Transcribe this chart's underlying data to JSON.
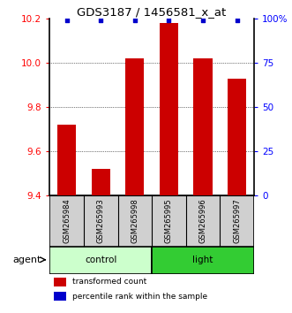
{
  "title": "GDS3187 / 1456581_x_at",
  "samples": [
    "GSM265984",
    "GSM265993",
    "GSM265998",
    "GSM265995",
    "GSM265996",
    "GSM265997"
  ],
  "bar_values": [
    9.72,
    9.52,
    10.02,
    10.18,
    10.02,
    9.93
  ],
  "percentile_values": [
    99,
    99,
    99,
    99,
    99,
    99
  ],
  "ylim_left": [
    9.4,
    10.2
  ],
  "ylim_right": [
    0,
    100
  ],
  "yticks_left": [
    9.4,
    9.6,
    9.8,
    10.0,
    10.2
  ],
  "yticks_right": [
    0,
    25,
    50,
    75,
    100
  ],
  "bar_color": "#cc0000",
  "dot_color": "#0000cc",
  "groups": [
    {
      "label": "control",
      "indices": [
        0,
        1,
        2
      ],
      "color": "#ccffcc"
    },
    {
      "label": "light",
      "indices": [
        3,
        4,
        5
      ],
      "color": "#33cc33"
    }
  ],
  "group_label_text": "agent",
  "legend_bar_label": "transformed count",
  "legend_dot_label": "percentile rank within the sample",
  "background_color": "#ffffff",
  "cell_color": "#d0d0d0"
}
